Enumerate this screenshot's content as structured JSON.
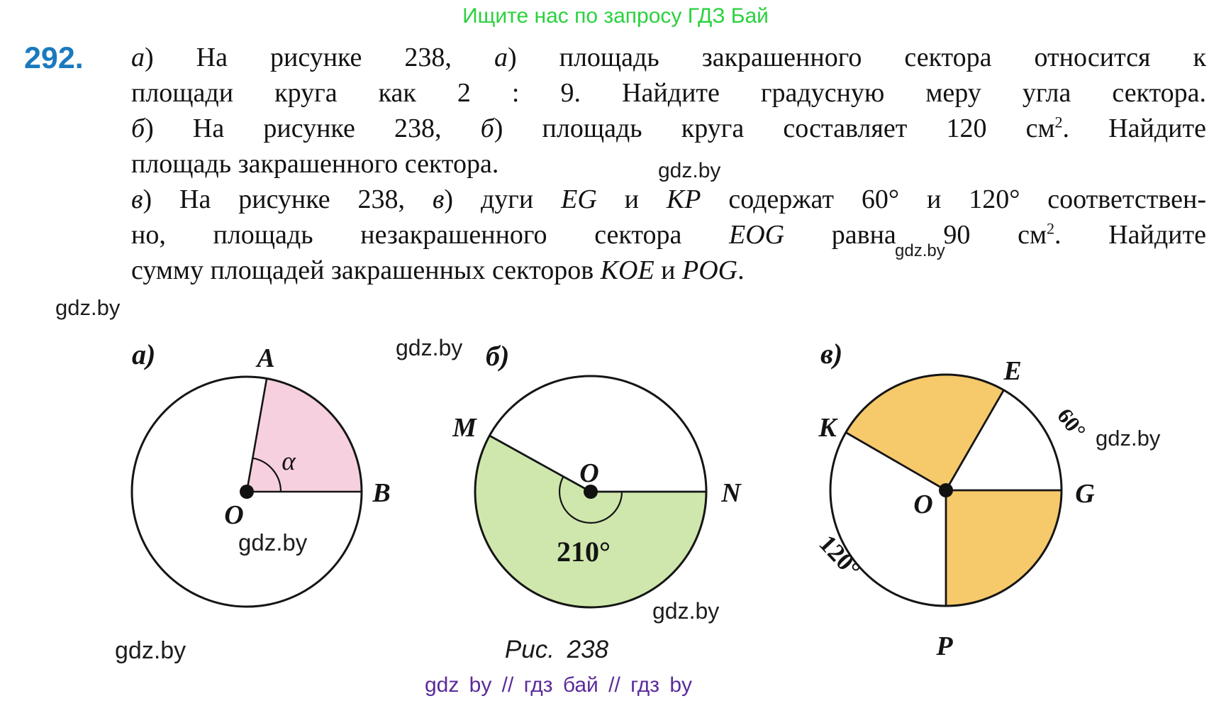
{
  "header": {
    "text": "Ищите нас по запросу ГДЗ Бай",
    "color": "#2bd13e"
  },
  "problem": {
    "number": "292.",
    "number_color": "#1a7abe",
    "lines": [
      {
        "html": "<i>а</i>) На рисунке 238, <i>а</i>) площадь закрашенного сектора относится к",
        "justify": true
      },
      {
        "html": "площади круга как 2 : 9. Найдите градусную меру угла сектора.",
        "justify": true
      },
      {
        "html": "<i>б</i>) На рисунке 238, <i>б</i>) площадь круга составляет 120 см<sup>2</sup>. Найдите",
        "justify": true
      },
      {
        "html": "площадь закрашенного сектора.",
        "justify": false
      },
      {
        "html": "<i>в</i>) На рисунке 238, <i>в</i>) дуги <i>EG</i> и <i>KP</i> содержат 60° и 120° соответствен-",
        "justify": true
      },
      {
        "html": "но, площадь незакрашенного сектора <i>EOG</i> равна 90 см<sup>2</sup>. Найдите",
        "justify": true
      },
      {
        "html": "сумму площадей закрашенных секторов <i>KOE</i> и <i>POG</i>.",
        "justify": false
      }
    ]
  },
  "watermark_text": "gdz.by",
  "figures": {
    "a": {
      "label": "а)",
      "point_A": "A",
      "point_B": "B",
      "point_O": "O",
      "alpha": "α",
      "sector_color": "#f7d0e0"
    },
    "b": {
      "label": "б)",
      "point_M": "M",
      "point_N": "N",
      "point_O": "O",
      "angle_label": "210°",
      "sector_color": "#cfe7ac"
    },
    "v": {
      "label": "в)",
      "point_E": "E",
      "point_K": "K",
      "point_G": "G",
      "point_P": "P",
      "point_O": "O",
      "arc_EG": "60°",
      "arc_KP": "120°",
      "sector_color": "#f6c96b"
    }
  },
  "caption": "Рис. 238",
  "footer": {
    "text": "gdz by // гдз бай // гдз by",
    "color": "#5b2b9b"
  }
}
